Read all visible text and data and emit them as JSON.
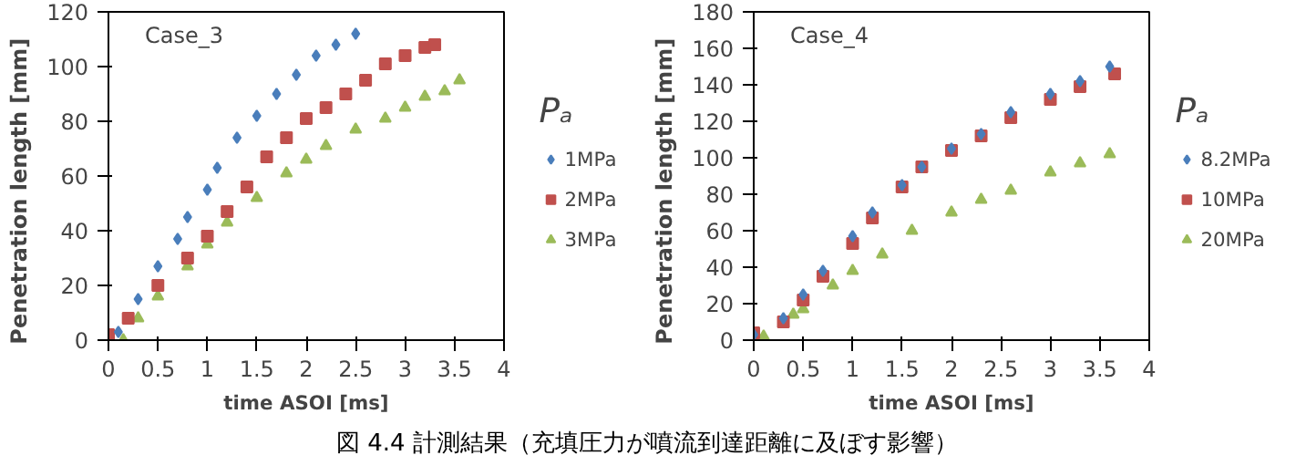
{
  "chart_data": [
    {
      "type": "scatter",
      "annotations": [
        "Case_3",
        "図 4.4  計測結果（充填圧力が噴流到達距離に及ぼす影響）"
      ],
      "xlabel": "time ASOI [ms]",
      "ylabel": "Penetration   length   [mm]",
      "legend_title": "Pₐ",
      "legend": "right",
      "grid": false,
      "xlim": [
        0,
        4
      ],
      "xticks": [
        0,
        0.5,
        1,
        1.5,
        2,
        2.5,
        3,
        3.5,
        4
      ],
      "ylim": [
        0,
        120
      ],
      "yticks": [
        0,
        20,
        40,
        60,
        80,
        100,
        120
      ],
      "series": [
        {
          "name": "1MPa",
          "color": "#4a7ebb",
          "marker": "diamond",
          "x": [
            0.1,
            0.3,
            0.5,
            0.7,
            0.8,
            1,
            1.1,
            1.3,
            1.5,
            1.7,
            1.9,
            2.1,
            2.3,
            2.5
          ],
          "values": [
            3,
            15,
            27,
            37,
            45,
            55,
            63,
            74,
            82,
            90,
            97,
            104,
            108,
            112
          ]
        },
        {
          "name": "2MPa",
          "color": "#c0504d",
          "marker": "square",
          "x": [
            0,
            0.2,
            0.5,
            0.8,
            1,
            1.2,
            1.4,
            1.6,
            1.8,
            2,
            2.2,
            2.4,
            2.6,
            2.8,
            3,
            3.2,
            3.3
          ],
          "values": [
            2,
            8,
            20,
            30,
            38,
            47,
            56,
            67,
            74,
            81,
            85,
            90,
            95,
            101,
            104,
            107,
            108
          ]
        },
        {
          "name": "3MPa",
          "color": "#9bbb59",
          "marker": "triangle",
          "x": [
            0.15,
            0.3,
            0.5,
            0.8,
            1,
            1.2,
            1.5,
            1.8,
            2,
            2.2,
            2.5,
            2.8,
            3,
            3.2,
            3.4,
            3.55
          ],
          "values": [
            0,
            8,
            16,
            27,
            35,
            43,
            52,
            61,
            66,
            71,
            77,
            81,
            85,
            89,
            91,
            95
          ]
        }
      ]
    },
    {
      "type": "scatter",
      "annotations": [
        "Case_4"
      ],
      "xlabel": "time ASOI [ms]",
      "ylabel": "Penetration   length   [mm]",
      "legend_title": "Pₐ",
      "legend": "right",
      "grid": false,
      "xlim": [
        0,
        4
      ],
      "xticks": [
        0,
        0.5,
        1,
        1.5,
        2,
        2.5,
        3,
        3.5,
        4
      ],
      "ylim": [
        0,
        180
      ],
      "yticks": [
        0,
        20,
        40,
        60,
        80,
        100,
        120,
        140,
        160,
        180
      ],
      "series": [
        {
          "name": "8.2MPa",
          "color": "#4a7ebb",
          "marker": "diamond",
          "x": [
            0,
            0.3,
            0.5,
            0.7,
            1,
            1.2,
            1.5,
            1.7,
            2,
            2.3,
            2.6,
            3,
            3.3,
            3.6
          ],
          "values": [
            3,
            12,
            25,
            38,
            57,
            70,
            85,
            95,
            105,
            113,
            125,
            135,
            142,
            150
          ]
        },
        {
          "name": "10MPa",
          "color": "#c0504d",
          "marker": "square",
          "x": [
            0,
            0.3,
            0.5,
            0.7,
            1,
            1.2,
            1.5,
            1.7,
            2,
            2.3,
            2.6,
            3,
            3.3,
            3.65
          ],
          "values": [
            4,
            10,
            22,
            35,
            53,
            67,
            84,
            95,
            104,
            112,
            122,
            132,
            139,
            146
          ]
        },
        {
          "name": "20MPa",
          "color": "#9bbb59",
          "marker": "triangle",
          "x": [
            0.1,
            0.4,
            0.5,
            0.8,
            1,
            1.3,
            1.6,
            2,
            2.3,
            2.6,
            3,
            3.3,
            3.6
          ],
          "values": [
            2,
            14,
            17,
            30,
            38,
            47,
            60,
            70,
            77,
            82,
            92,
            97,
            102
          ]
        }
      ]
    }
  ]
}
